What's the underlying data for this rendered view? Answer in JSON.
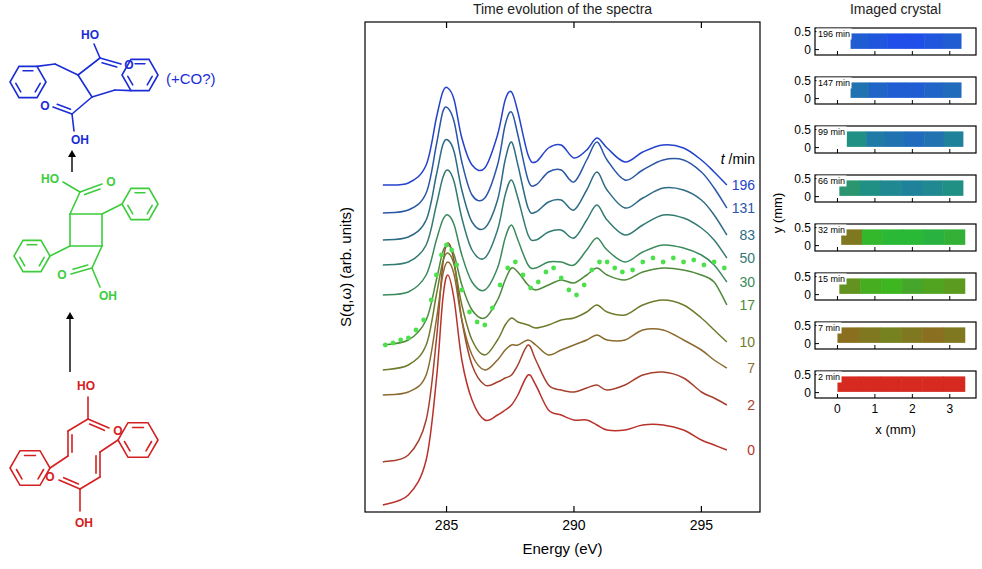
{
  "chart_data": [
    {
      "type": "line",
      "title": "Time evolution of the spectra",
      "x_label": "Energy (eV)",
      "y_label": "S(q,ω) (arb. units)",
      "series_label_title": "t /min",
      "xlim": [
        281.8,
        297.3
      ],
      "xticks": [
        285,
        290,
        295
      ],
      "ylim": [
        0,
        490
      ],
      "tick_labels": "x",
      "x": [
        282.5,
        283.5,
        284.2,
        284.6,
        284.85,
        285.05,
        285.3,
        285.6,
        286,
        286.5,
        287,
        287.3,
        287.55,
        287.8,
        288.2,
        288.5,
        289,
        289.5,
        290,
        290.5,
        290.9,
        291.3,
        292,
        292.7,
        293.5,
        294.3,
        295,
        295.5,
        296
      ],
      "series": [
        {
          "name": "0",
          "color": "#b8322c",
          "values": [
            7,
            17,
            52,
            132,
            212,
            237,
            212,
            152,
            112,
            92,
            97,
            102,
            107,
            117,
            137,
            127,
            102,
            97,
            92,
            92,
            87,
            82,
            82,
            87,
            87,
            82,
            72,
            67,
            62
          ]
        },
        {
          "name": "2",
          "color": "#a5412e",
          "values": [
            50,
            57,
            92,
            172,
            247,
            269,
            250,
            192,
            147,
            127,
            130,
            134,
            137,
            147,
            167,
            152,
            127,
            122,
            120,
            124,
            127,
            122,
            127,
            137,
            140,
            134,
            120,
            114,
            107
          ]
        },
        {
          "name": "7",
          "color": "#8a6a2e",
          "values": [
            117,
            120,
            137,
            192,
            237,
            250,
            237,
            192,
            157,
            142,
            152,
            162,
            167,
            167,
            172,
            167,
            157,
            162,
            167,
            172,
            177,
            172,
            172,
            182,
            182,
            172,
            162,
            152,
            144
          ]
        },
        {
          "name": "10",
          "color": "#6e7b2c",
          "values": [
            142,
            147,
            167,
            217,
            250,
            259,
            247,
            207,
            172,
            157,
            172,
            187,
            194,
            190,
            187,
            184,
            187,
            192,
            194,
            200,
            207,
            200,
            197,
            207,
            212,
            207,
            194,
            182,
            170
          ]
        },
        {
          "name": "17",
          "color": "#4e8a3a",
          "values": [
            167,
            172,
            192,
            232,
            260,
            267,
            257,
            227,
            202,
            194,
            212,
            232,
            244,
            240,
            227,
            222,
            227,
            232,
            229,
            237,
            244,
            237,
            232,
            240,
            244,
            242,
            237,
            230,
            207
          ]
        },
        {
          "name": "30",
          "color": "#3a8a5c",
          "values": [
            217,
            220,
            237,
            272,
            292,
            297,
            287,
            257,
            230,
            222,
            244,
            274,
            287,
            272,
            247,
            244,
            250,
            250,
            247,
            262,
            274,
            262,
            250,
            260,
            267,
            264,
            257,
            247,
            230
          ]
        },
        {
          "name": "50",
          "color": "#337b72",
          "values": [
            247,
            250,
            267,
            307,
            334,
            342,
            330,
            294,
            262,
            254,
            282,
            317,
            332,
            314,
            277,
            272,
            280,
            282,
            274,
            292,
            307,
            292,
            277,
            287,
            297,
            294,
            284,
            272,
            254
          ]
        },
        {
          "name": "83",
          "color": "#2d6a86",
          "values": [
            272,
            275,
            292,
            337,
            367,
            372,
            360,
            322,
            290,
            284,
            312,
            352,
            370,
            347,
            304,
            300,
            310,
            312,
            302,
            322,
            340,
            322,
            304,
            314,
            324,
            322,
            312,
            297,
            277
          ]
        },
        {
          "name": "131",
          "color": "#2a56a6",
          "values": [
            299,
            302,
            319,
            367,
            400,
            404,
            390,
            350,
            317,
            314,
            347,
            387,
            400,
            377,
            332,
            327,
            340,
            342,
            330,
            352,
            370,
            352,
            332,
            342,
            352,
            352,
            340,
            324,
            304
          ]
        },
        {
          "name": "196",
          "color": "#2442cc",
          "values": [
            327,
            329,
            347,
            394,
            420,
            424,
            412,
            374,
            347,
            344,
            377,
            412,
            420,
            400,
            357,
            350,
            364,
            367,
            354,
            362,
            374,
            364,
            350,
            360,
            367,
            364,
            352,
            340,
            327
          ]
        },
        {
          "type": "scatter",
          "marker": "circle",
          "color": "#4de04d",
          "x": [
            282.6,
            282.9,
            283.2,
            283.5,
            283.8,
            284.1,
            284.4,
            284.6,
            284.8,
            285.0,
            285.2,
            285.4,
            285.6,
            285.9,
            286.2,
            286.5,
            286.8,
            287.1,
            287.4,
            287.7,
            288.0,
            288.3,
            288.6,
            288.9,
            289.2,
            289.5,
            289.8,
            290.1,
            290.4,
            290.7,
            291.0,
            291.3,
            291.6,
            291.9,
            292.3,
            292.7,
            293.1,
            293.5,
            293.9,
            294.3,
            294.7,
            295.1,
            295.5,
            295.9
          ],
          "values": [
            167,
            169,
            172,
            174,
            182,
            192,
            212,
            237,
            257,
            267,
            262,
            247,
            222,
            200,
            190,
            187,
            204,
            227,
            244,
            250,
            237,
            224,
            230,
            240,
            244,
            234,
            222,
            217,
            227,
            242,
            250,
            250,
            244,
            240,
            242,
            250,
            254,
            250,
            254,
            250,
            252,
            247,
            250,
            244
          ]
        }
      ]
    },
    {
      "type": "heatmap",
      "title": "Imaged crystal",
      "x_label": "x (mm)",
      "y_label": "y (mm)",
      "xlim": [
        -0.6,
        3.7
      ],
      "xticks": [
        0,
        1,
        2,
        3
      ],
      "ylim": [
        -0.15,
        0.6
      ],
      "yticks": [
        0,
        0.5
      ],
      "colors": [
        "#e02020",
        "#20d020",
        "#2040ff"
      ],
      "panels": [
        {
          "label": "196 min",
          "x_extent": [
            0.35,
            3.3
          ],
          "y_extent": [
            0.02,
            0.45
          ],
          "composition": [
            [
              0,
              0.2,
              0.8
            ],
            [
              0,
              0.15,
              0.85
            ],
            [
              0,
              0.1,
              0.9
            ],
            [
              0,
              0.1,
              0.9
            ],
            [
              0,
              0.15,
              0.85
            ],
            [
              0,
              0.2,
              0.8
            ]
          ]
        },
        {
          "label": "147 min",
          "x_extent": [
            0.35,
            3.3
          ],
          "y_extent": [
            0.02,
            0.45
          ],
          "composition": [
            [
              0,
              0.35,
              0.65
            ],
            [
              0,
              0.25,
              0.75
            ],
            [
              0,
              0.2,
              0.8
            ],
            [
              0,
              0.2,
              0.8
            ],
            [
              0,
              0.25,
              0.75
            ],
            [
              0,
              0.3,
              0.7
            ]
          ]
        },
        {
          "label": "99 min",
          "x_extent": [
            0.25,
            3.35
          ],
          "y_extent": [
            0.02,
            0.45
          ],
          "composition": [
            [
              0,
              0.55,
              0.45
            ],
            [
              0,
              0.4,
              0.6
            ],
            [
              0,
              0.35,
              0.65
            ],
            [
              0,
              0.3,
              0.7
            ],
            [
              0,
              0.35,
              0.65
            ],
            [
              0,
              0.45,
              0.55
            ]
          ]
        },
        {
          "label": "66 min",
          "x_extent": [
            0.05,
            3.35
          ],
          "y_extent": [
            0.02,
            0.45
          ],
          "composition": [
            [
              0.05,
              0.6,
              0.35
            ],
            [
              0,
              0.55,
              0.45
            ],
            [
              0,
              0.5,
              0.5
            ],
            [
              0,
              0.45,
              0.55
            ],
            [
              0,
              0.5,
              0.5
            ],
            [
              0,
              0.55,
              0.45
            ]
          ]
        },
        {
          "label": "32 min",
          "x_extent": [
            0.1,
            3.4
          ],
          "y_extent": [
            0.02,
            0.45
          ],
          "composition": [
            [
              0.5,
              0.5,
              0
            ],
            [
              0.1,
              0.85,
              0.05
            ],
            [
              0.05,
              0.85,
              0.1
            ],
            [
              0.05,
              0.85,
              0.1
            ],
            [
              0.05,
              0.8,
              0.15
            ],
            [
              0.1,
              0.8,
              0.1
            ]
          ]
        },
        {
          "label": "15 min",
          "x_extent": [
            0.05,
            3.4
          ],
          "y_extent": [
            0.02,
            0.45
          ],
          "composition": [
            [
              0.35,
              0.65,
              0
            ],
            [
              0.2,
              0.8,
              0
            ],
            [
              0.15,
              0.85,
              0
            ],
            [
              0.2,
              0.75,
              0.05
            ],
            [
              0.25,
              0.75,
              0
            ],
            [
              0.3,
              0.7,
              0
            ]
          ]
        },
        {
          "label": "7 min",
          "x_extent": [
            0,
            3.4
          ],
          "y_extent": [
            0.02,
            0.45
          ],
          "composition": [
            [
              0.55,
              0.45,
              0
            ],
            [
              0.5,
              0.5,
              0
            ],
            [
              0.45,
              0.55,
              0
            ],
            [
              0.5,
              0.5,
              0
            ],
            [
              0.55,
              0.45,
              0
            ],
            [
              0.5,
              0.5,
              0
            ]
          ]
        },
        {
          "label": "2 min",
          "x_extent": [
            0,
            3.4
          ],
          "y_extent": [
            0.02,
            0.45
          ],
          "composition": [
            [
              0.95,
              0.05,
              0
            ],
            [
              0.95,
              0.05,
              0
            ],
            [
              0.95,
              0.05,
              0
            ],
            [
              0.95,
              0.05,
              0
            ],
            [
              0.95,
              0.05,
              0
            ],
            [
              0.95,
              0.05,
              0
            ]
          ]
        }
      ]
    }
  ],
  "structures": [
    {
      "color": "#1a2dd6",
      "labels": [
        "HO",
        "O",
        "O",
        "OH"
      ],
      "annotation": "(+CO?)"
    },
    {
      "color": "#3ccc3c",
      "labels": [
        "HO",
        "O",
        "O",
        "OH"
      ]
    },
    {
      "color": "#d42020",
      "labels": [
        "HO",
        "O",
        "O",
        "OH"
      ]
    }
  ]
}
